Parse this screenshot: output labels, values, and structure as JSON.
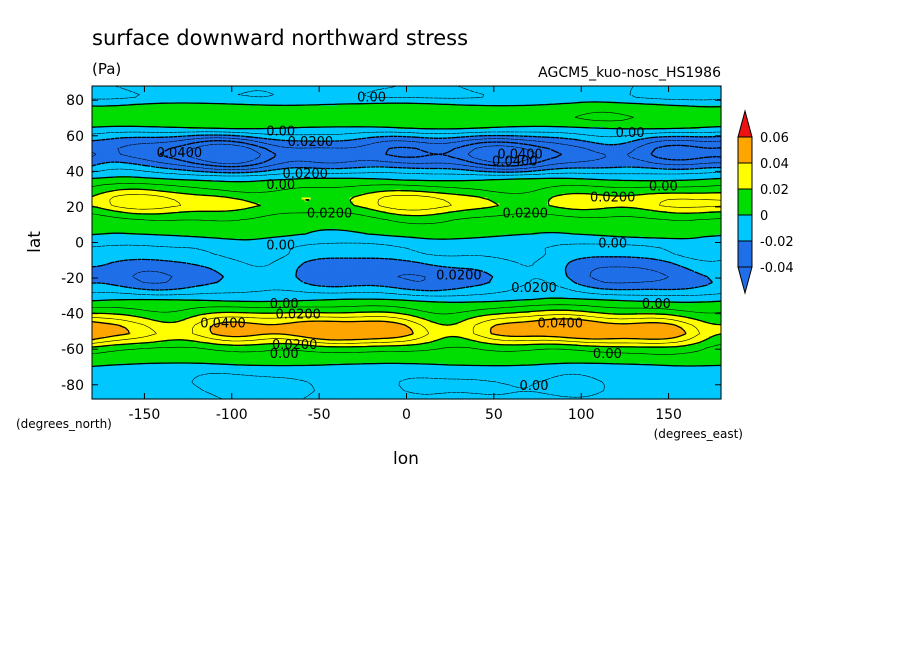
{
  "chart_data": {
    "type": "contour",
    "title": "surface downward northward stress",
    "units": "(Pa)",
    "run_label": "AGCM5_kuo-nosc_HS1986",
    "xlabel": "lon",
    "ylabel": "lat",
    "x_unit_note": "(degrees_east)",
    "y_unit_note": "(degrees_north)",
    "xlim": [
      -180,
      180
    ],
    "ylim": [
      -88,
      88
    ],
    "x_ticks": [
      -150,
      -100,
      -50,
      0,
      50,
      100,
      150
    ],
    "x_tick_labels": [
      "-150",
      "-100",
      "-50",
      "0",
      "50",
      "100",
      "150"
    ],
    "y_ticks": [
      -80,
      -60,
      -40,
      -20,
      0,
      20,
      40,
      60,
      80
    ],
    "y_tick_labels": [
      "-80",
      "-60",
      "-40",
      "-20",
      "0",
      "20",
      "40",
      "60",
      "80"
    ],
    "colorbar": {
      "levels": [
        -0.04,
        -0.02,
        0,
        0.02,
        0.04,
        0.06
      ],
      "labels": [
        "-0.04",
        "-0.02",
        "0",
        "0.02",
        "0.04",
        "0.06"
      ],
      "colors": [
        "#1f6fe8",
        "#00c8ff",
        "#00dd00",
        "#ffff00",
        "#ffa500",
        "#ee1111"
      ],
      "extend_min_color": "#1f6fe8",
      "extend_max_color": "#ee1111"
    },
    "zonal_profile": {
      "lat": [
        88,
        82,
        76,
        70,
        65,
        61,
        57,
        53,
        49,
        45,
        41,
        37,
        33,
        29,
        25,
        21,
        17,
        13,
        9,
        5,
        1,
        -3,
        -7,
        -11,
        -15,
        -19,
        -23,
        -27,
        -31,
        -35,
        -39,
        -43,
        -47,
        -51,
        -55,
        -59,
        -63,
        -67,
        -71,
        -75,
        -79,
        -83,
        -88
      ],
      "value": [
        -0.008,
        -0.01,
        0.004,
        0.008,
        0.002,
        -0.012,
        -0.028,
        -0.04,
        -0.045,
        -0.035,
        -0.02,
        -0.004,
        0.006,
        0.014,
        0.024,
        0.026,
        0.016,
        0.008,
        0.004,
        0.002,
        -0.004,
        -0.01,
        -0.012,
        -0.018,
        -0.022,
        -0.024,
        -0.022,
        -0.014,
        -0.004,
        0.006,
        0.016,
        0.03,
        0.042,
        0.044,
        0.03,
        0.014,
        0.006,
        0.004,
        -0.006,
        -0.008,
        -0.01,
        -0.01,
        -0.008
      ]
    },
    "contour_labels": [
      {
        "text": "0.00",
        "lon": -20,
        "lat": 82
      },
      {
        "text": "0.00",
        "lon": -72,
        "lat": 63
      },
      {
        "text": "0.0200",
        "lon": -55,
        "lat": 57
      },
      {
        "text": "0.0400",
        "lon": -130,
        "lat": 51
      },
      {
        "text": "0.0400",
        "lon": 65,
        "lat": 50
      },
      {
        "text": "0.0400",
        "lon": 62,
        "lat": 46
      },
      {
        "text": "0.00",
        "lon": 128,
        "lat": 62
      },
      {
        "text": "0.0200",
        "lon": -58,
        "lat": 39
      },
      {
        "text": "0.00",
        "lon": -72,
        "lat": 33
      },
      {
        "text": "0.00",
        "lon": 147,
        "lat": 32
      },
      {
        "text": "0.0200",
        "lon": 118,
        "lat": 26
      },
      {
        "text": "0.0200",
        "lon": -44,
        "lat": 17
      },
      {
        "text": "0.0200",
        "lon": 68,
        "lat": 17
      },
      {
        "text": "0.00",
        "lon": -72,
        "lat": -1
      },
      {
        "text": "0.00",
        "lon": 118,
        "lat": 0
      },
      {
        "text": "0.0200",
        "lon": 30,
        "lat": -18
      },
      {
        "text": "0.0200",
        "lon": 73,
        "lat": -25
      },
      {
        "text": "0.00",
        "lon": -70,
        "lat": -34
      },
      {
        "text": "0.00",
        "lon": 143,
        "lat": -34
      },
      {
        "text": "0.0200",
        "lon": -62,
        "lat": -40
      },
      {
        "text": "0.0400",
        "lon": -105,
        "lat": -45
      },
      {
        "text": "0.0400",
        "lon": 88,
        "lat": -45
      },
      {
        "text": "0.0200",
        "lon": -64,
        "lat": -57
      },
      {
        "text": "0.00",
        "lon": -70,
        "lat": -62
      },
      {
        "text": "0.00",
        "lon": 115,
        "lat": -62
      },
      {
        "text": "0.00",
        "lon": 73,
        "lat": -80
      }
    ]
  }
}
